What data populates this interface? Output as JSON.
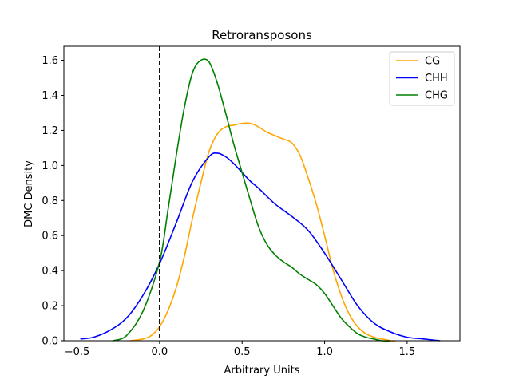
{
  "chart_data": {
    "type": "line",
    "title": "Retroransposons",
    "xlabel": "Arbitrary Units",
    "ylabel": "DMC Density",
    "xlim": [
      -0.58,
      1.82
    ],
    "ylim": [
      0,
      1.68
    ],
    "xticks": [
      -0.5,
      0.0,
      0.5,
      1.0,
      1.5
    ],
    "xtick_labels": [
      "−0.5",
      "0.0",
      "0.5",
      "1.0",
      "1.5"
    ],
    "yticks": [
      0.0,
      0.2,
      0.4,
      0.6,
      0.8,
      1.0,
      1.2,
      1.4,
      1.6
    ],
    "ytick_labels": [
      "0.0",
      "0.2",
      "0.4",
      "0.6",
      "0.8",
      "1.0",
      "1.2",
      "1.4",
      "1.6"
    ],
    "grid": false,
    "legend_position": "top-right",
    "reference_line": {
      "x": 0.0,
      "style": "dashed",
      "color": "#000000"
    },
    "series": [
      {
        "name": "CG",
        "color": "#FFA500",
        "x": [
          -0.18,
          -0.1,
          -0.05,
          0.0,
          0.05,
          0.1,
          0.15,
          0.2,
          0.25,
          0.3,
          0.35,
          0.4,
          0.45,
          0.5,
          0.55,
          0.6,
          0.65,
          0.7,
          0.75,
          0.8,
          0.85,
          0.9,
          0.95,
          1.0,
          1.05,
          1.1,
          1.15,
          1.2,
          1.25,
          1.3,
          1.35,
          1.4,
          1.43
        ],
        "y": [
          0.0,
          0.01,
          0.03,
          0.08,
          0.17,
          0.3,
          0.48,
          0.7,
          0.9,
          1.08,
          1.18,
          1.22,
          1.23,
          1.24,
          1.24,
          1.22,
          1.19,
          1.17,
          1.15,
          1.13,
          1.06,
          0.93,
          0.78,
          0.6,
          0.41,
          0.26,
          0.15,
          0.08,
          0.04,
          0.02,
          0.01,
          0.0,
          0.0
        ]
      },
      {
        "name": "CHH",
        "color": "#0000FF",
        "x": [
          -0.48,
          -0.4,
          -0.3,
          -0.2,
          -0.1,
          0.0,
          0.1,
          0.2,
          0.3,
          0.35,
          0.4,
          0.45,
          0.5,
          0.55,
          0.6,
          0.7,
          0.8,
          0.9,
          1.0,
          1.1,
          1.2,
          1.3,
          1.4,
          1.5,
          1.6,
          1.7
        ],
        "y": [
          0.01,
          0.02,
          0.06,
          0.13,
          0.26,
          0.44,
          0.67,
          0.91,
          1.05,
          1.07,
          1.05,
          1.01,
          0.96,
          0.91,
          0.87,
          0.78,
          0.71,
          0.63,
          0.5,
          0.35,
          0.2,
          0.1,
          0.05,
          0.02,
          0.01,
          0.0
        ]
      },
      {
        "name": "CHG",
        "color": "#008000",
        "x": [
          -0.28,
          -0.2,
          -0.1,
          0.0,
          0.05,
          0.1,
          0.15,
          0.2,
          0.25,
          0.3,
          0.35,
          0.4,
          0.45,
          0.5,
          0.55,
          0.6,
          0.65,
          0.7,
          0.75,
          0.8,
          0.85,
          0.9,
          0.95,
          1.0,
          1.05,
          1.1,
          1.15,
          1.2,
          1.25,
          1.3,
          1.35,
          1.4
        ],
        "y": [
          0.0,
          0.03,
          0.17,
          0.45,
          0.74,
          1.05,
          1.33,
          1.53,
          1.6,
          1.59,
          1.47,
          1.3,
          1.12,
          0.96,
          0.8,
          0.65,
          0.55,
          0.49,
          0.45,
          0.42,
          0.38,
          0.35,
          0.32,
          0.27,
          0.2,
          0.13,
          0.08,
          0.04,
          0.02,
          0.01,
          0.0,
          0.0
        ]
      }
    ]
  }
}
